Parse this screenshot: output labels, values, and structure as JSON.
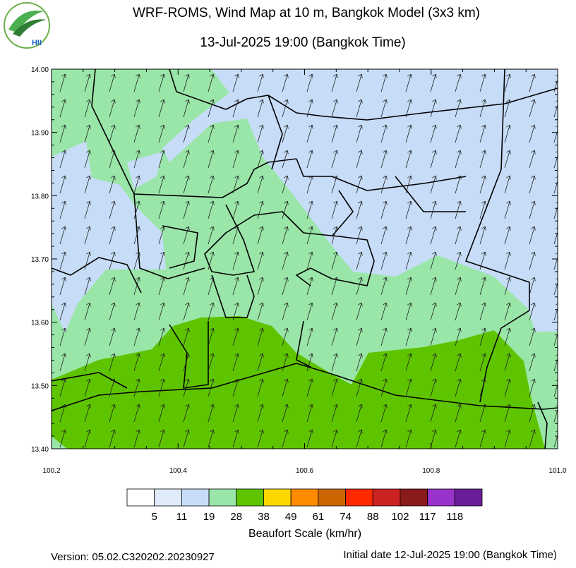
{
  "header": {
    "logo": "HII",
    "title": "WRF-ROMS, Wind Map at 10 m, Bangkok Model (3x3 km)",
    "subtitle": "13-Jul-2025 19:00 (Bangkok Time)"
  },
  "map": {
    "y_ticks": [
      "14.00",
      "13.90",
      "13.80",
      "13.70",
      "13.60",
      "13.50",
      "13.40"
    ],
    "x_ticks": [
      "100.2",
      "100.4",
      "100.6",
      "100.8",
      "101.0"
    ]
  },
  "legend": {
    "colors": [
      "#ffffff",
      "#e1ecfb",
      "#c6dcf7",
      "#99e6a8",
      "#5ec400",
      "#ffd700",
      "#ff8c00",
      "#cc6600",
      "#ff2a00",
      "#cc2222",
      "#8b1a1a",
      "#9933cc",
      "#6a1f9a"
    ],
    "labels": [
      5,
      11,
      19,
      28,
      38,
      49,
      61,
      74,
      88,
      102,
      117,
      118
    ],
    "title": "Beaufort Scale (km/hr)"
  },
  "footer": {
    "version": "Version: 05.02.C320202.20230927",
    "initial_date": "Initial date 12-Jul-2025 19:00 (Bangkok Time)"
  }
}
